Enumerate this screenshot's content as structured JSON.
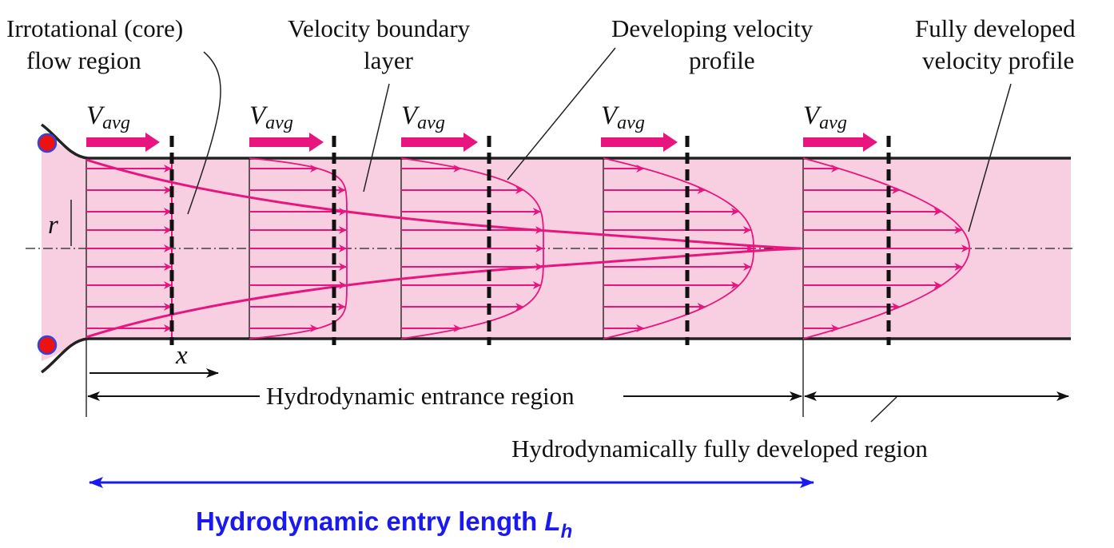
{
  "labels": {
    "irrotational_line1": "Irrotational (core)",
    "irrotational_line2": "flow region",
    "boundary_line1": "Velocity boundary",
    "boundary_line2": "layer",
    "developing_line1": "Developing velocity",
    "developing_line2": "profile",
    "fully_line1": "Fully developed",
    "fully_line2": "velocity profile",
    "vavg_symbol": "V",
    "vavg_subscript": "avg",
    "radius_symbol": "r",
    "axial_symbol": "x",
    "entrance_region": "Hydrodynamic entrance region",
    "fully_region": "Hydrodynamically fully developed region",
    "entry_length_text": "Hydrodynamic entry length ",
    "entry_length_symbol": "L",
    "entry_length_subscript": "h"
  },
  "colors": {
    "pipe_fill": "#f8cfe0",
    "profile": "#e8157f",
    "wall": "#222222",
    "annotation": "#1a1aee",
    "marker_fill": "#ee1111",
    "marker_stroke": "#3344dd"
  }
}
